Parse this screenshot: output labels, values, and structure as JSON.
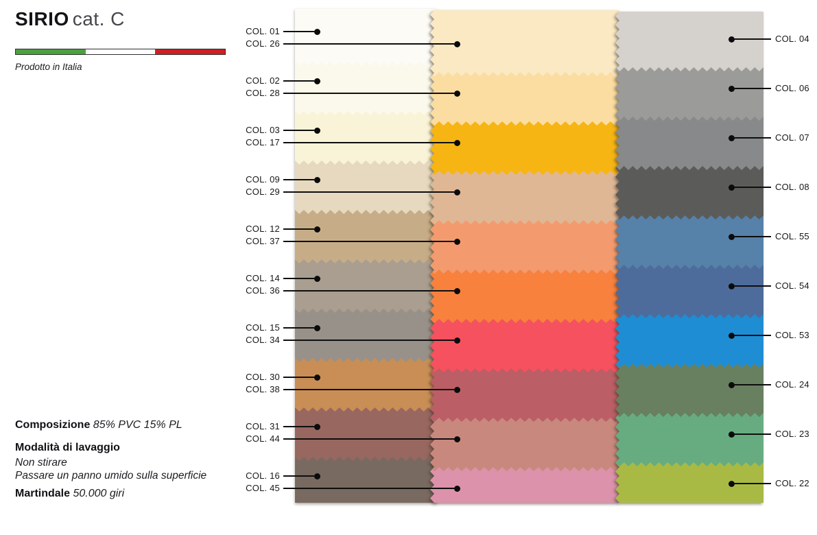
{
  "header": {
    "title_bold": "SIRIO",
    "title_light": "cat. C",
    "origin": "Prodotto in Italia",
    "flag_colors": [
      "#4aa23c",
      "#ffffff",
      "#d01f24"
    ]
  },
  "specs": {
    "composition_label": "Composizione",
    "composition_value": "85% PVC 15% PL",
    "washing_label": "Modalità di lavaggio",
    "washing_lines": [
      "Non stirare",
      "Passare un panno umido sulla superficie"
    ],
    "martindale_label": "Martindale",
    "martindale_value": "50.000 giri"
  },
  "swatches": {
    "rows": [
      {
        "left_code": "COL. 01",
        "left_color": "#fcfbf6",
        "middle_code": "COL. 26",
        "middle_color": "#fae9c2",
        "right_code": "COL. 04",
        "right_color": "#d5d1cc"
      },
      {
        "left_code": "COL. 02",
        "left_color": "#fbf8ec",
        "middle_code": "COL. 28",
        "middle_color": "#fbdda1",
        "right_code": "COL. 06",
        "right_color": "#9b9b99"
      },
      {
        "left_code": "COL. 03",
        "left_color": "#f9f3d7",
        "middle_code": "COL. 17",
        "middle_color": "#f6b513",
        "right_code": "COL. 07",
        "right_color": "#87898a"
      },
      {
        "left_code": "COL. 09",
        "left_color": "#e6d9c0",
        "middle_code": "COL. 29",
        "middle_color": "#dfb795",
        "right_code": "COL. 08",
        "right_color": "#5b5b59"
      },
      {
        "left_code": "COL. 12",
        "left_color": "#c7ad87",
        "middle_code": "COL. 37",
        "middle_color": "#f39b6f",
        "right_code": "COL. 55",
        "right_color": "#5681a9"
      },
      {
        "left_code": "COL. 14",
        "left_color": "#a99e8f",
        "middle_code": "COL. 36",
        "middle_color": "#f8813e",
        "right_code": "COL. 54",
        "right_color": "#4d6c9b"
      },
      {
        "left_code": "COL. 15",
        "left_color": "#989189",
        "middle_code": "COL. 34",
        "middle_color": "#f5515e",
        "right_code": "COL. 53",
        "right_color": "#1f8dd3"
      },
      {
        "left_code": "COL. 30",
        "left_color": "#c98e55",
        "middle_code": "COL. 38",
        "middle_color": "#bb5e66",
        "right_code": "COL. 24",
        "right_color": "#68805f"
      },
      {
        "left_code": "COL. 31",
        "left_color": "#976760",
        "middle_code": "COL. 44",
        "middle_color": "#c9887d",
        "right_code": "COL. 23",
        "right_color": "#67ac80"
      },
      {
        "left_code": "COL. 16",
        "left_color": "#786a60",
        "middle_code": "COL. 45",
        "middle_color": "#db92aa",
        "right_code": "COL. 22",
        "right_color": "#a9ba44"
      }
    ]
  }
}
